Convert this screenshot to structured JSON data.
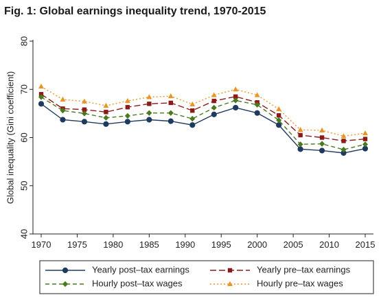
{
  "figure": {
    "title": "Fig. 1: Global earnings inequality trend, 1970-2015"
  },
  "chart_data": {
    "type": "line",
    "title": "Fig. 1: Global earnings inequality trend, 1970-2015",
    "xlabel": "",
    "ylabel": "Global inequality (Gini coefficient)",
    "x": [
      1970,
      1973,
      1976,
      1979,
      1982,
      1985,
      1988,
      1991,
      1994,
      1997,
      2000,
      2003,
      2006,
      2009,
      2012,
      2015
    ],
    "xticks": [
      1970,
      1975,
      1980,
      1985,
      1990,
      1995,
      2000,
      2005,
      2010,
      2015
    ],
    "yticks": [
      40,
      50,
      60,
      70,
      80
    ],
    "xlim": [
      1970,
      2015
    ],
    "ylim": [
      40,
      80
    ],
    "grid": false,
    "legend_position": "bottom",
    "series": [
      {
        "name": "Yearly post–tax earnings",
        "color": "#1f3a5f",
        "dash": "solid",
        "marker": "circle",
        "values": [
          67.0,
          63.7,
          63.3,
          62.8,
          63.3,
          63.7,
          63.4,
          62.6,
          64.8,
          66.2,
          65.1,
          62.6,
          57.6,
          57.3,
          56.8,
          57.7
        ]
      },
      {
        "name": "Yearly pre–tax earnings",
        "color": "#8b1a1a",
        "dash": "longdash",
        "marker": "square",
        "values": [
          69.0,
          66.0,
          65.8,
          65.3,
          66.3,
          67.0,
          67.2,
          65.6,
          67.6,
          68.5,
          67.3,
          64.6,
          60.5,
          60.0,
          59.3,
          59.7
        ]
      },
      {
        "name": "Hourly post–tax wages",
        "color": "#4a7a1e",
        "dash": "dash",
        "marker": "diamond",
        "values": [
          68.4,
          65.6,
          65.0,
          64.1,
          64.5,
          65.1,
          65.1,
          63.9,
          66.2,
          67.7,
          66.8,
          63.6,
          58.6,
          58.7,
          57.5,
          58.6
        ]
      },
      {
        "name": "Hourly pre–tax wages",
        "color": "#e8962a",
        "dash": "dot",
        "marker": "triangle",
        "values": [
          70.6,
          67.9,
          67.5,
          66.6,
          67.6,
          68.4,
          68.6,
          66.9,
          68.8,
          70.0,
          68.8,
          65.9,
          61.6,
          61.5,
          60.3,
          60.9
        ]
      }
    ]
  }
}
